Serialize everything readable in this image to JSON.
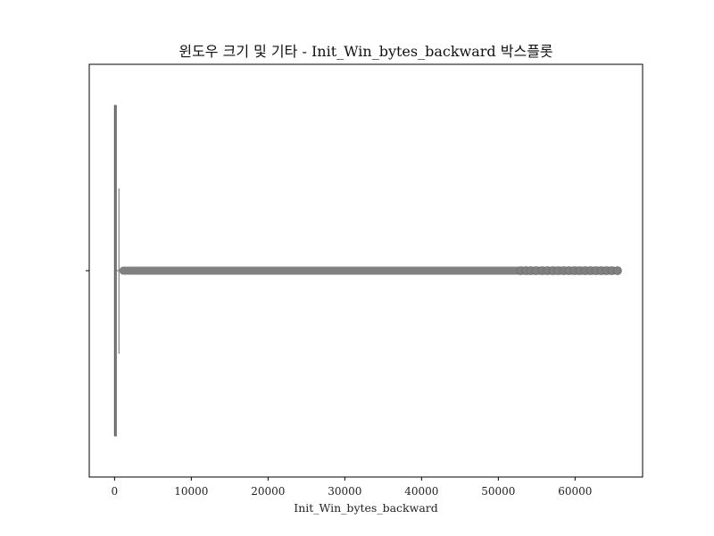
{
  "chart_data": {
    "type": "box",
    "orientation": "horizontal",
    "title": "윈도우 크기 및 기타 - Init_Win_bytes_backward 박스플롯",
    "xlabel": "Init_Win_bytes_backward",
    "ylabel": "",
    "xlim": [
      -3300,
      68800
    ],
    "xticks": [
      0,
      10000,
      20000,
      30000,
      40000,
      50000,
      60000
    ],
    "xtick_labels": [
      "0",
      "10000",
      "20000",
      "30000",
      "40000",
      "50000",
      "60000"
    ],
    "grid": false,
    "box": {
      "q1": -1,
      "median": 0,
      "q3": 229,
      "whisker_low": -1,
      "whisker_high": 572,
      "color": "#808080"
    },
    "outliers": {
      "dense_range": [
        600,
        65535
      ],
      "sparse_points": [
        52900,
        53600,
        54200,
        54900,
        55700,
        56400,
        57100,
        57800,
        58500,
        59200,
        59900,
        60600,
        61300,
        62000,
        62700,
        63400,
        64100,
        64800,
        65535
      ],
      "color": "#808080"
    }
  }
}
